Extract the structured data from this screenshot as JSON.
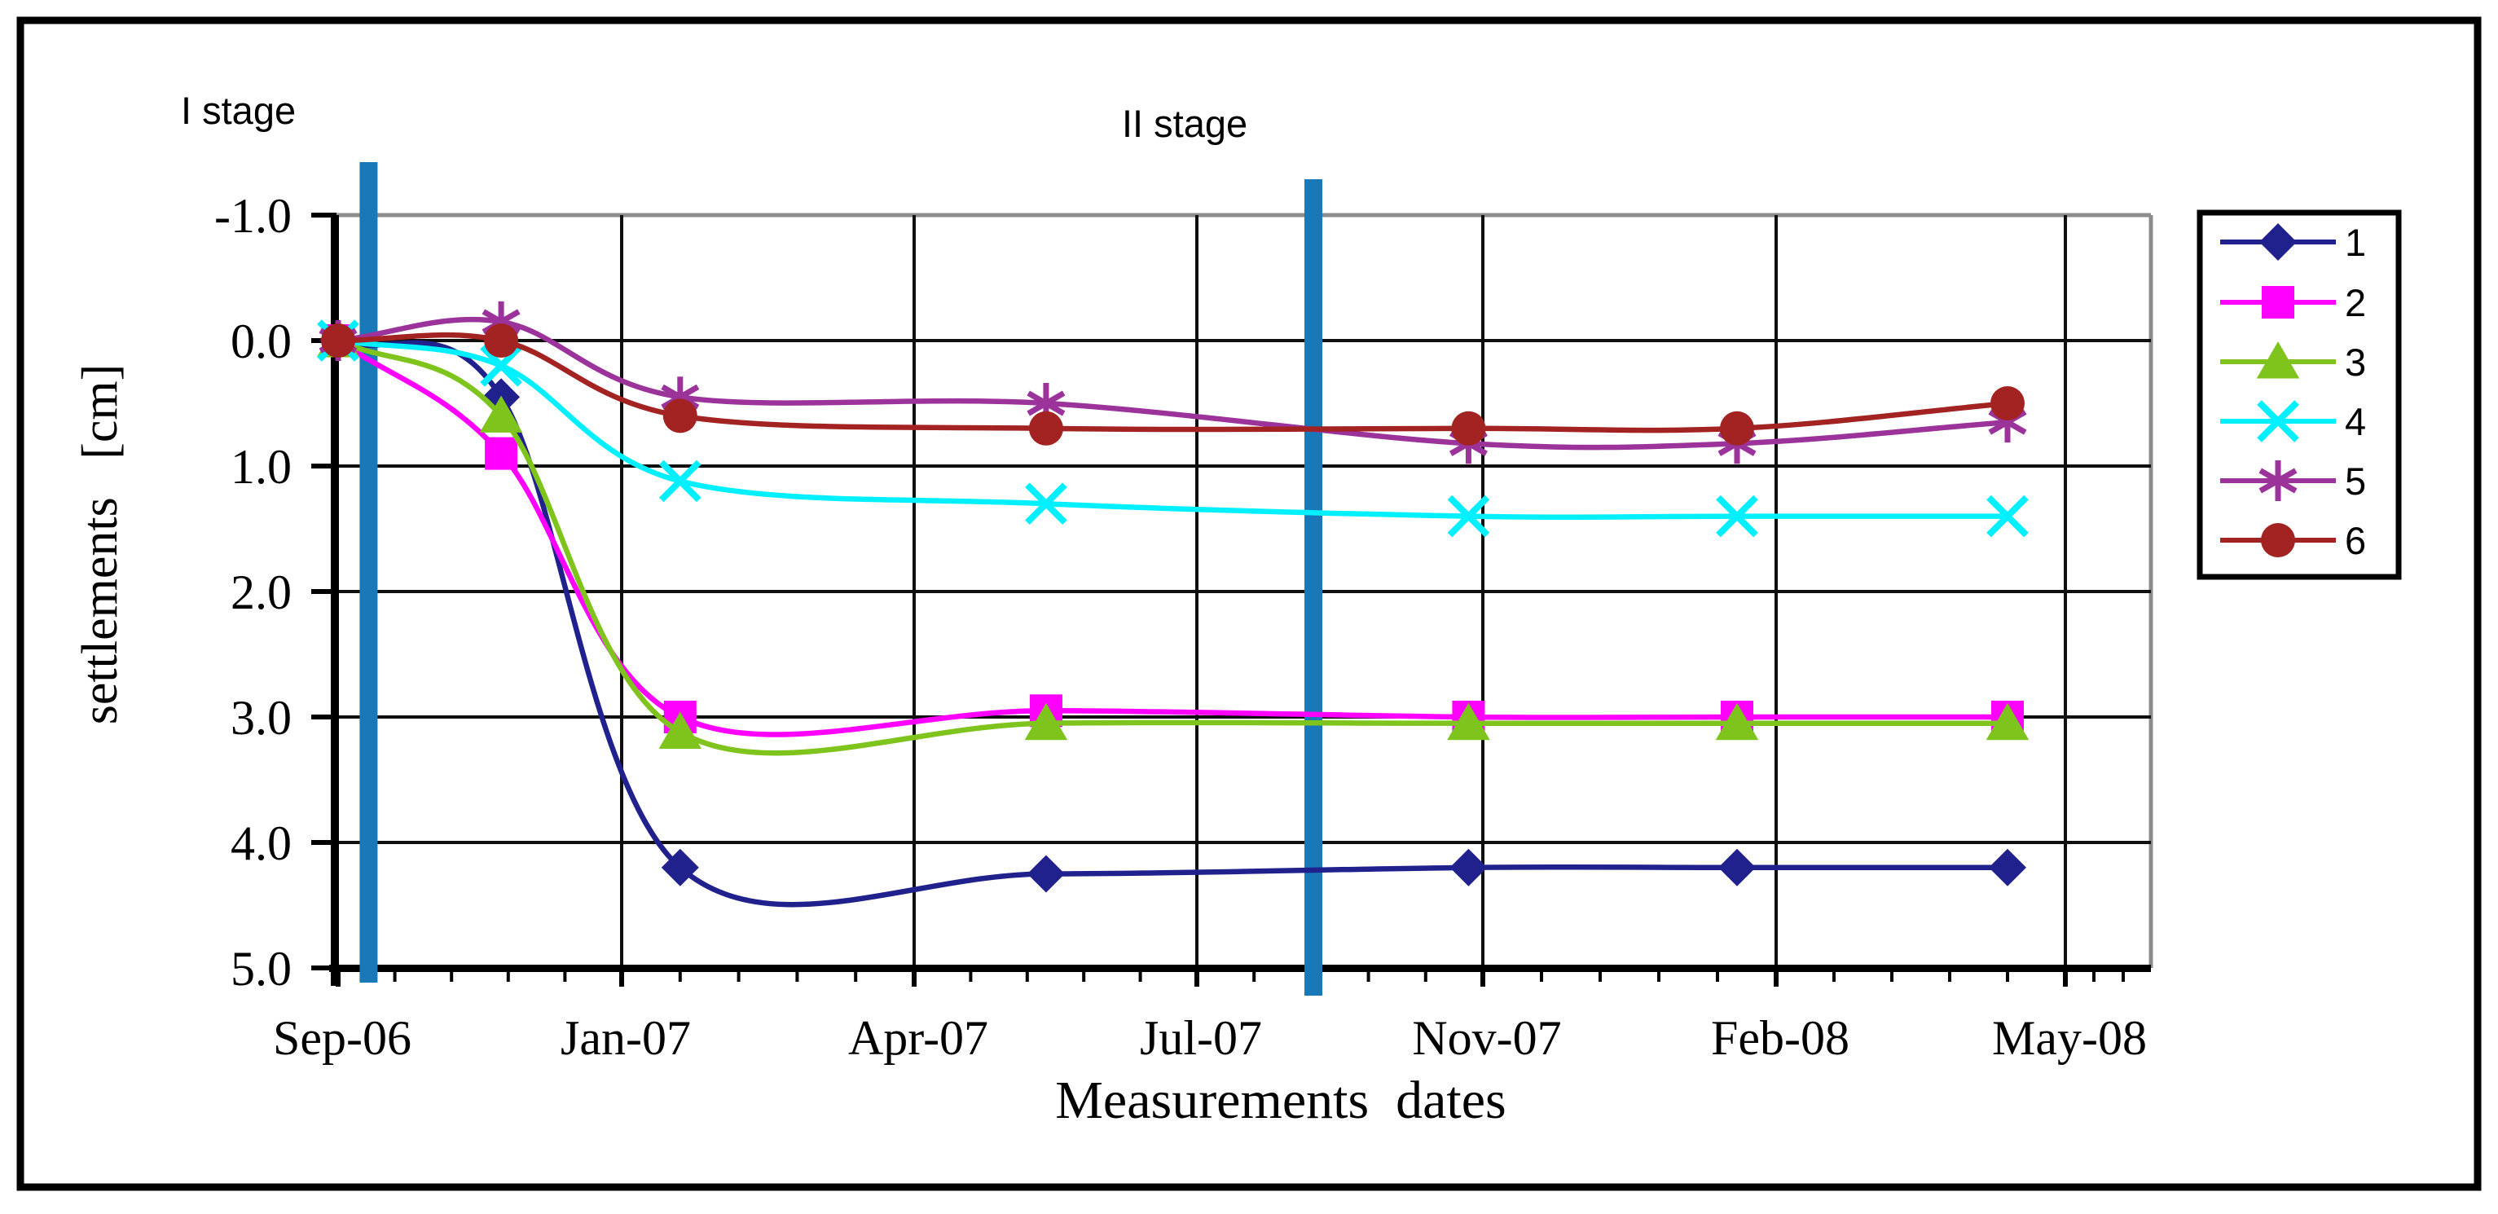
{
  "labels": {
    "stage1": "I stage",
    "stage2": "II stage",
    "x_title": "Measurements  dates",
    "y_title": "settlements   [cm]"
  },
  "chart_data": {
    "type": "line",
    "title": "",
    "xlabel": "Measurements  dates",
    "ylabel": "settlements [cm]",
    "x_axis": {
      "tick_labels": [
        "Sep-06",
        "Jan-07",
        "Apr-07",
        "Jul-07",
        "Nov-07",
        "Feb-08",
        "May-08"
      ],
      "tick_months": [
        0,
        4,
        7,
        10,
        14,
        17,
        20
      ],
      "minor_ticks_per_interval": 4
    },
    "y_axis": {
      "tick_labels": [
        "-1.0",
        "0.0",
        "1.0",
        "2.0",
        "3.0",
        "4.0",
        "5.0"
      ],
      "tick_values": [
        -1,
        0,
        1,
        2,
        3,
        4,
        5
      ],
      "range": [
        -1,
        5
      ],
      "inverted": true,
      "unit": "cm"
    },
    "measurements": {
      "months_from_sep06": [
        0,
        2.3,
        4.6,
        8.4,
        13.8,
        16.6,
        19.4
      ],
      "approx_dates": [
        "Sep-06",
        "Nov-06",
        "Jan-07",
        "May-07",
        "Oct-07",
        "Jan-08",
        "Apr-08"
      ]
    },
    "series": [
      {
        "name": "1",
        "marker": "diamond",
        "color": "#21218E",
        "values": [
          0,
          0.45,
          4.2,
          4.25,
          4.2,
          4.2,
          4.2
        ]
      },
      {
        "name": "2",
        "marker": "square",
        "color": "#FF00FF",
        "values": [
          0,
          0.9,
          3.0,
          2.95,
          3.0,
          3.0,
          3.0
        ]
      },
      {
        "name": "3",
        "marker": "triangle",
        "color": "#7EC41C",
        "values": [
          0,
          0.6,
          3.12,
          3.05,
          3.05,
          3.05,
          3.05
        ]
      },
      {
        "name": "4",
        "marker": "x",
        "color": "#00F0FF",
        "values": [
          0,
          0.2,
          1.12,
          1.3,
          1.4,
          1.4,
          1.4
        ]
      },
      {
        "name": "5",
        "marker": "asterisk",
        "color": "#9B339B",
        "values": [
          0,
          -0.15,
          0.45,
          0.5,
          0.82,
          0.82,
          0.65
        ]
      },
      {
        "name": "6",
        "marker": "circle",
        "color": "#A32222",
        "values": [
          0,
          0.0,
          0.6,
          0.7,
          0.7,
          0.7,
          0.5
        ]
      }
    ],
    "stage_bars": [
      {
        "label": "I stage",
        "month": 0.43,
        "color": "#1878B8"
      },
      {
        "label": "II stage",
        "month": 11.63,
        "color": "#1878B8"
      }
    ],
    "legend": {
      "labels": [
        "1",
        "2",
        "3",
        "4",
        "5",
        "6"
      ],
      "position": "right"
    },
    "grid": "both",
    "smoothed_lines": true
  },
  "colors": {
    "grid": "#0f0f0f",
    "border_gray": "#8C8C8C",
    "axis": "#000000",
    "figure_border": "#000000",
    "background": "#FFFFFF"
  }
}
